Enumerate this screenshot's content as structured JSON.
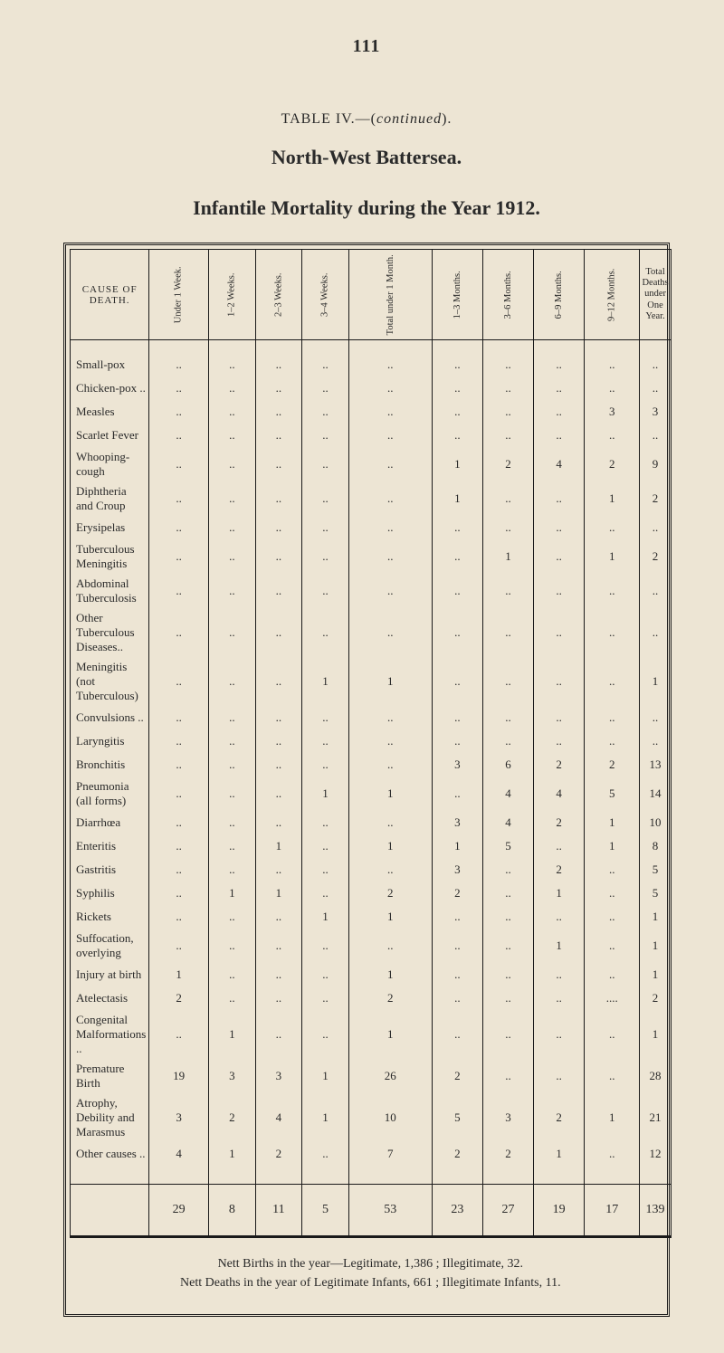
{
  "page_number": "111",
  "table_ref_prefix": "TABLE IV.—(",
  "table_ref_cont": "continued",
  "table_ref_suffix": ").",
  "region": "North-West Battersea.",
  "title": "Infantile Mortality during the Year 1912.",
  "columns": {
    "cause": "CAUSE OF DEATH.",
    "c1": "Under 1 Week.",
    "c2": "1–2 Weeks.",
    "c3": "2–3 Weeks.",
    "c4": "3–4 Weeks.",
    "c5": "Total under 1 Month.",
    "c6": "1–3 Months.",
    "c7": "3–6 Months.",
    "c8": "6–9 Months.",
    "c9": "9–12 Months.",
    "c10_l1": "Total",
    "c10_l2": "Deaths",
    "c10_l3": "under",
    "c10_l4": "One Year."
  },
  "rows": [
    {
      "cause": "Small-pox",
      "v": [
        "..",
        "..",
        "..",
        "..",
        "..",
        "..",
        "..",
        "..",
        "..",
        ".."
      ]
    },
    {
      "cause": "Chicken-pox ..",
      "v": [
        "..",
        "..",
        "..",
        "..",
        "..",
        "..",
        "..",
        "..",
        "..",
        ".."
      ]
    },
    {
      "cause": "Measles",
      "v": [
        "..",
        "..",
        "..",
        "..",
        "..",
        "..",
        "..",
        "..",
        "3",
        "3"
      ]
    },
    {
      "cause": "Scarlet Fever",
      "v": [
        "..",
        "..",
        "..",
        "..",
        "..",
        "..",
        "..",
        "..",
        "..",
        ".."
      ]
    },
    {
      "cause": "Whooping-cough",
      "v": [
        "..",
        "..",
        "..",
        "..",
        "..",
        "1",
        "2",
        "4",
        "2",
        "9"
      ]
    },
    {
      "cause": "Diphtheria and Croup",
      "v": [
        "..",
        "..",
        "..",
        "..",
        "..",
        "1",
        "..",
        "..",
        "1",
        "2"
      ]
    },
    {
      "cause": "Erysipelas",
      "v": [
        "..",
        "..",
        "..",
        "..",
        "..",
        "..",
        "..",
        "..",
        "..",
        ".."
      ]
    },
    {
      "cause": "Tuberculous Meningitis",
      "v": [
        "..",
        "..",
        "..",
        "..",
        "..",
        "..",
        "1",
        "..",
        "1",
        "2"
      ]
    },
    {
      "cause": "Abdominal Tuberculosis",
      "v": [
        "..",
        "..",
        "..",
        "..",
        "..",
        "..",
        "..",
        "..",
        "..",
        ".."
      ]
    },
    {
      "cause": "Other Tuberculous Diseases..",
      "v": [
        "..",
        "..",
        "..",
        "..",
        "..",
        "..",
        "..",
        "..",
        "..",
        ".."
      ]
    },
    {
      "cause": "Meningitis (not Tuberculous)",
      "v": [
        "..",
        "..",
        "..",
        "1",
        "1",
        "..",
        "..",
        "..",
        "..",
        "1"
      ]
    },
    {
      "cause": "Convulsions ..",
      "v": [
        "..",
        "..",
        "..",
        "..",
        "..",
        "..",
        "..",
        "..",
        "..",
        ".."
      ]
    },
    {
      "cause": "Laryngitis",
      "v": [
        "..",
        "..",
        "..",
        "..",
        "..",
        "..",
        "..",
        "..",
        "..",
        ".."
      ]
    },
    {
      "cause": "Bronchitis",
      "v": [
        "..",
        "..",
        "..",
        "..",
        "..",
        "3",
        "6",
        "2",
        "2",
        "13"
      ]
    },
    {
      "cause": "Pneumonia (all forms)",
      "v": [
        "..",
        "..",
        "..",
        "1",
        "1",
        "..",
        "4",
        "4",
        "5",
        "14"
      ]
    },
    {
      "cause": "Diarrhœa",
      "v": [
        "..",
        "..",
        "..",
        "..",
        "..",
        "3",
        "4",
        "2",
        "1",
        "10"
      ]
    },
    {
      "cause": "Enteritis",
      "v": [
        "..",
        "..",
        "1",
        "..",
        "1",
        "1",
        "5",
        "..",
        "1",
        "8"
      ]
    },
    {
      "cause": "Gastritis",
      "v": [
        "..",
        "..",
        "..",
        "..",
        "..",
        "3",
        "..",
        "2",
        "..",
        "5"
      ]
    },
    {
      "cause": "Syphilis",
      "v": [
        "..",
        "1",
        "1",
        "..",
        "2",
        "2",
        "..",
        "1",
        "..",
        "5"
      ]
    },
    {
      "cause": "Rickets",
      "v": [
        "..",
        "..",
        "..",
        "1",
        "1",
        "..",
        "..",
        "..",
        "..",
        "1"
      ]
    },
    {
      "cause": "Suffocation, overlying",
      "v": [
        "..",
        "..",
        "..",
        "..",
        "..",
        "..",
        "..",
        "1",
        "..",
        "1"
      ]
    },
    {
      "cause": "Injury at birth",
      "v": [
        "1",
        "..",
        "..",
        "..",
        "1",
        "..",
        "..",
        "..",
        "..",
        "1"
      ]
    },
    {
      "cause": "Atelectasis",
      "v": [
        "2",
        "..",
        "..",
        "..",
        "2",
        "..",
        "..",
        "..",
        "....",
        "2"
      ]
    },
    {
      "cause": "Congenital Malformations ..",
      "v": [
        "..",
        "1",
        "..",
        "..",
        "1",
        "..",
        "..",
        "..",
        "..",
        "1"
      ]
    },
    {
      "cause": "Premature Birth",
      "v": [
        "19",
        "3",
        "3",
        "1",
        "26",
        "2",
        "..",
        "..",
        "..",
        "28"
      ]
    },
    {
      "cause": "Atrophy, Debility and Marasmus",
      "v": [
        "3",
        "2",
        "4",
        "1",
        "10",
        "5",
        "3",
        "2",
        "1",
        "21"
      ]
    },
    {
      "cause": "Other causes ..",
      "v": [
        "4",
        "1",
        "2",
        "..",
        "7",
        "2",
        "2",
        "1",
        "..",
        "12"
      ]
    }
  ],
  "totals": [
    "",
    "29",
    "8",
    "11",
    "5",
    "53",
    "23",
    "27",
    "19",
    "17",
    "139"
  ],
  "footnote_l1": "Nett Births in the year—Legitimate, 1,386 ; Illegitimate, 32.",
  "footnote_l2": "Nett Deaths in the year of Legitimate Infants, 661 ; Illegitimate Infants, 11."
}
